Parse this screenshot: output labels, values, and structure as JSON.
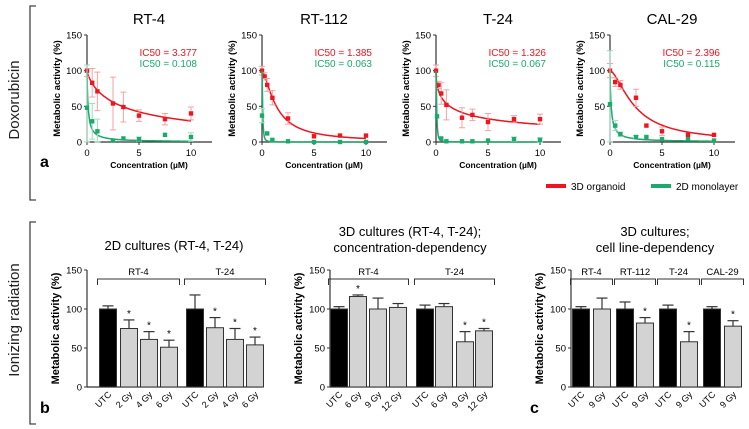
{
  "sections": {
    "doxorubicin_label": "Doxorubicin",
    "radiation_label": "Ionizing radiation",
    "panel_a": "a",
    "panel_b": "b",
    "panel_c": "c"
  },
  "legend": [
    {
      "label": "3D organoid",
      "color": "#f0141e"
    },
    {
      "label": "2D monolayer",
      "color": "#1aaa6b"
    }
  ],
  "chart_data": [
    {
      "type": "line",
      "title": "RT-4",
      "xlabel": "Concentration (µM)",
      "ylabel": "Metabolic activity (%)",
      "xlim": [
        0,
        12
      ],
      "ylim": [
        0,
        150
      ],
      "xticks": [
        "0",
        "5",
        "10"
      ],
      "yticks": [
        "0",
        "50",
        "100",
        "150"
      ],
      "series": [
        {
          "name": "3D organoid",
          "ic50_label": "IC50 = 3.377",
          "ic50": 3.377,
          "hill": 0.8,
          "x": [
            0,
            0.5,
            1,
            2.5,
            3.5,
            5,
            7.5,
            10
          ],
          "y": [
            100,
            83,
            71,
            54,
            49,
            37,
            32,
            40
          ],
          "err": [
            8,
            20,
            27,
            37,
            21,
            8,
            8,
            9
          ]
        },
        {
          "name": "2D monolayer",
          "ic50_label": "IC50 = 0.108",
          "ic50": 0.108,
          "hill": 1,
          "x": [
            0,
            0.5,
            1,
            2.5,
            3.5,
            5,
            7.5,
            10
          ],
          "y": [
            48,
            29,
            15,
            2,
            5,
            4,
            10,
            7
          ],
          "err": [
            60,
            25,
            17,
            0,
            0,
            3,
            0,
            6
          ]
        }
      ]
    },
    {
      "type": "line",
      "title": "RT-112",
      "xlabel": "Concentration (µM)",
      "ylabel": "Metabolic activity (%)",
      "xlim": [
        0,
        12
      ],
      "ylim": [
        0,
        150
      ],
      "xticks": [
        "0",
        "5",
        "10"
      ],
      "yticks": [
        "0",
        "50",
        "100",
        "150"
      ],
      "series": [
        {
          "name": "3D organoid",
          "ic50_label": "IC50 = 1.385",
          "ic50": 1.385,
          "hill": 1.5,
          "x": [
            0,
            0.25,
            0.5,
            1,
            2.5,
            5,
            7.5,
            10
          ],
          "y": [
            100,
            92,
            80,
            62,
            33,
            8,
            9,
            9
          ],
          "err": [
            6,
            5,
            9,
            10,
            8,
            0,
            0,
            0
          ]
        },
        {
          "name": "2D monolayer",
          "ic50_label": "IC50 = 0.063",
          "ic50": 0.063,
          "hill": 2,
          "x": [
            0,
            0.5,
            1,
            2.5,
            5,
            7.5,
            10
          ],
          "y": [
            37,
            12,
            3,
            1,
            0,
            0,
            0
          ],
          "err": [
            10,
            0,
            0,
            0,
            0,
            0,
            0
          ]
        }
      ]
    },
    {
      "type": "line",
      "title": "T-24",
      "xlabel": "Concentration (µM)",
      "ylabel": "Metabolic activity (%)",
      "xlim": [
        0,
        12
      ],
      "ylim": [
        0,
        150
      ],
      "xticks": [
        "0",
        "5",
        "10"
      ],
      "yticks": [
        "0",
        "50",
        "100",
        "150"
      ],
      "series": [
        {
          "name": "3D organoid",
          "ic50_label": "IC50 = 1.326",
          "ic50": 1.326,
          "hill": 0.55,
          "x": [
            0,
            0.25,
            0.5,
            1,
            2.5,
            3.5,
            5,
            7.5,
            10
          ],
          "y": [
            100,
            80,
            68,
            52,
            34,
            38,
            28,
            32,
            32
          ],
          "err": [
            8,
            5,
            15,
            21,
            14,
            8,
            12,
            5,
            7
          ]
        },
        {
          "name": "2D monolayer",
          "ic50_label": "IC50 = 0.067",
          "ic50": 0.067,
          "hill": 2,
          "x": [
            0.1,
            0.5,
            1,
            2.5,
            3.5,
            5,
            7.5,
            10
          ],
          "y": [
            36,
            5,
            1,
            1,
            1,
            2,
            4,
            3
          ],
          "err": [
            0,
            0,
            0,
            0,
            0,
            0,
            3,
            3
          ]
        }
      ]
    },
    {
      "type": "line",
      "title": "CAL-29",
      "xlabel": "Concentration (µM)",
      "ylabel": "Metabolic activity (%)",
      "xlim": [
        0,
        12
      ],
      "ylim": [
        0,
        150
      ],
      "xticks": [
        "0",
        "5",
        "10"
      ],
      "yticks": [
        "0",
        "50",
        "100",
        "150"
      ],
      "series": [
        {
          "name": "3D organoid",
          "ic50_label": "IC50 = 2.396",
          "ic50": 2.396,
          "hill": 1.6,
          "x": [
            0,
            0.5,
            1,
            2.5,
            3.5,
            5,
            7.5,
            10
          ],
          "y": [
            100,
            84,
            80,
            62,
            23,
            15,
            10,
            10
          ],
          "err": [
            10,
            6,
            6,
            12,
            0,
            6,
            0,
            0
          ]
        },
        {
          "name": "2D monolayer",
          "ic50_label": "IC50 = 0.115",
          "ic50": 0.115,
          "hill": 1,
          "x": [
            0,
            0.5,
            1,
            2.5,
            3.5,
            5,
            7.5,
            10
          ],
          "y": [
            53,
            23,
            11,
            7,
            7,
            4,
            4,
            2
          ],
          "err": [
            75,
            7,
            3,
            2,
            0,
            0,
            0,
            0
          ]
        }
      ]
    },
    {
      "type": "bar",
      "title": [
        "2D cultures (RT-4, T-24)"
      ],
      "ylabel": "Metabolic activity (%)",
      "ylim": [
        0,
        150
      ],
      "yticks": [
        "0",
        "50",
        "100",
        "150"
      ],
      "groups": [
        {
          "label": "RT-4",
          "categories": [
            "UTC",
            "2 Gy",
            "4 Gy",
            "6 Gy"
          ],
          "values": [
            100,
            75,
            61,
            51
          ],
          "err": [
            4,
            11,
            10,
            9
          ],
          "significant": [
            false,
            true,
            true,
            true
          ]
        },
        {
          "label": "T-24",
          "categories": [
            "UTC",
            "2 Gy",
            "4 Gy",
            "6 Gy"
          ],
          "values": [
            100,
            76,
            61,
            54
          ],
          "err": [
            18,
            13,
            14,
            10
          ],
          "significant": [
            false,
            true,
            true,
            true
          ]
        }
      ]
    },
    {
      "type": "bar",
      "title": [
        "3D cultures (RT-4, T-24);",
        "concentration-dependency"
      ],
      "ylabel": "Metabolic activity (%)",
      "ylim": [
        0,
        150
      ],
      "yticks": [
        "0",
        "50",
        "100",
        "150"
      ],
      "groups": [
        {
          "label": "RT-4",
          "categories": [
            "UTC",
            "6 Gy",
            "9 Gy",
            "12 Gy"
          ],
          "values": [
            100,
            116,
            100,
            102
          ],
          "err": [
            3,
            2,
            14,
            5
          ],
          "significant": [
            false,
            true,
            false,
            false
          ]
        },
        {
          "label": "T-24",
          "categories": [
            "UTC",
            "6 Gy",
            "9 Gy",
            "12 Gy"
          ],
          "values": [
            100,
            103,
            58,
            72
          ],
          "err": [
            5,
            4,
            13,
            3
          ],
          "significant": [
            false,
            false,
            true,
            true
          ]
        }
      ]
    },
    {
      "type": "bar",
      "title": [
        "3D cultures;",
        "cell line-dependency"
      ],
      "ylabel": "Metabolic activity (%)",
      "ylim": [
        0,
        150
      ],
      "yticks": [
        "0",
        "50",
        "100",
        "150"
      ],
      "groups": [
        {
          "label": "RT-4",
          "categories": [
            "UTC",
            "9 Gy"
          ],
          "values": [
            100,
            100
          ],
          "err": [
            3,
            14
          ],
          "significant": [
            false,
            false
          ]
        },
        {
          "label": "RT-112",
          "categories": [
            "UTC",
            "9 Gy"
          ],
          "values": [
            100,
            82
          ],
          "err": [
            9,
            7
          ],
          "significant": [
            false,
            true
          ]
        },
        {
          "label": "T-24",
          "categories": [
            "UTC",
            "9 Gy"
          ],
          "values": [
            100,
            58
          ],
          "err": [
            5,
            13
          ],
          "significant": [
            false,
            true
          ]
        },
        {
          "label": "CAL-29",
          "categories": [
            "UTC",
            "9 Gy"
          ],
          "values": [
            100,
            78
          ],
          "err": [
            3,
            7
          ],
          "significant": [
            false,
            true
          ]
        }
      ]
    }
  ],
  "bar_colors": {
    "control": "#000000",
    "treated": "#d3d3d3"
  }
}
